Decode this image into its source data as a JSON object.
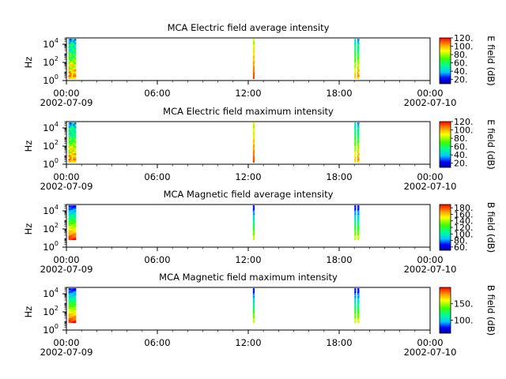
{
  "chart_data": [
    {
      "type": "heatmap",
      "title": "MCA  Electric field average intensity",
      "ylabel": "Hz",
      "colorbar_label": "E field (dB)",
      "colorbar_range": [
        10,
        120
      ],
      "colorbar_ticks": [
        "20.",
        "40.",
        "60.",
        "80.",
        "100.",
        "120."
      ],
      "colorbar_tick_values": [
        20,
        40,
        60,
        80,
        100,
        120
      ],
      "y_scale": "log",
      "y_ticks": [
        {
          "base": "10",
          "exp": "0"
        },
        {
          "base": "10",
          "exp": "2"
        },
        {
          "base": "10",
          "exp": "4"
        }
      ],
      "x_ticks": [
        "00:00",
        "06:00",
        "12:00",
        "18:00",
        "00:00"
      ],
      "x_dates": [
        "2002-07-09",
        "2002-07-10"
      ],
      "x_range": [
        "2002-07-09 00:00",
        "2002-07-10 00:00"
      ],
      "ylim_exp": [
        0,
        4.7
      ],
      "grid": false,
      "bursts": [
        {
          "start": "00:08",
          "end": "00:38",
          "style": "fringe"
        },
        {
          "start": "12:18",
          "end": "12:23",
          "style": "warm"
        },
        {
          "start": "19:00",
          "end": "19:03",
          "style": "sparse"
        },
        {
          "start": "19:12",
          "end": "19:19",
          "style": "fringe"
        }
      ]
    },
    {
      "type": "heatmap",
      "title": "MCA  Electric field maximum intensity",
      "ylabel": "Hz",
      "colorbar_label": "E field (dB)",
      "colorbar_range": [
        10,
        120
      ],
      "colorbar_ticks": [
        "20.",
        "40.",
        "60.",
        "80.",
        "100.",
        "120."
      ],
      "colorbar_tick_values": [
        20,
        40,
        60,
        80,
        100,
        120
      ],
      "y_scale": "log",
      "y_ticks": [
        {
          "base": "10",
          "exp": "0"
        },
        {
          "base": "10",
          "exp": "2"
        },
        {
          "base": "10",
          "exp": "4"
        }
      ],
      "x_ticks": [
        "00:00",
        "06:00",
        "12:00",
        "18:00",
        "00:00"
      ],
      "x_dates": [
        "2002-07-09",
        "2002-07-10"
      ],
      "x_range": [
        "2002-07-09 00:00",
        "2002-07-10 00:00"
      ],
      "ylim_exp": [
        0,
        4.7
      ],
      "grid": false,
      "bursts": [
        {
          "start": "00:08",
          "end": "00:38",
          "style": "fringe"
        },
        {
          "start": "12:18",
          "end": "12:23",
          "style": "warm"
        },
        {
          "start": "19:00",
          "end": "19:03",
          "style": "sparse"
        },
        {
          "start": "19:12",
          "end": "19:19",
          "style": "fringe"
        }
      ]
    },
    {
      "type": "heatmap",
      "title": "MCA  Magnetic field average intensity",
      "ylabel": "Hz",
      "colorbar_label": "B field (dB)",
      "colorbar_range": [
        50,
        190
      ],
      "colorbar_ticks": [
        "60.",
        "80.",
        "100.",
        "120.",
        "140.",
        "160.",
        "180."
      ],
      "colorbar_tick_values": [
        60,
        80,
        100,
        120,
        140,
        160,
        180
      ],
      "y_scale": "log",
      "y_ticks": [
        {
          "base": "10",
          "exp": "0"
        },
        {
          "base": "10",
          "exp": "2"
        },
        {
          "base": "10",
          "exp": "4"
        }
      ],
      "x_ticks": [
        "00:00",
        "06:00",
        "12:00",
        "18:00",
        "00:00"
      ],
      "x_dates": [
        "2002-07-09",
        "2002-07-10"
      ],
      "x_range": [
        "2002-07-09 00:00",
        "2002-07-10 00:00"
      ],
      "ylim_exp": [
        0,
        4.7
      ],
      "grid": false,
      "bursts": [
        {
          "start": "00:08",
          "end": "00:38",
          "style": "mag"
        },
        {
          "start": "12:18",
          "end": "12:23",
          "style": "mag-thin"
        },
        {
          "start": "19:00",
          "end": "19:03",
          "style": "mag-thin"
        },
        {
          "start": "19:12",
          "end": "19:19",
          "style": "mag-thin"
        }
      ]
    },
    {
      "type": "heatmap",
      "title": "MCA  Magnetic field maximum intensity",
      "ylabel": "Hz",
      "colorbar_label": "B field (dB)",
      "colorbar_range": [
        60,
        200
      ],
      "colorbar_ticks": [
        "100.",
        "150."
      ],
      "colorbar_tick_values": [
        100,
        150
      ],
      "y_scale": "log",
      "y_ticks": [
        {
          "base": "10",
          "exp": "0"
        },
        {
          "base": "10",
          "exp": "2"
        },
        {
          "base": "10",
          "exp": "4"
        }
      ],
      "x_ticks": [
        "00:00",
        "06:00",
        "12:00",
        "18:00",
        "00:00"
      ],
      "x_dates": [
        "2002-07-09",
        "2002-07-10"
      ],
      "x_range": [
        "2002-07-09 00:00",
        "2002-07-10 00:00"
      ],
      "ylim_exp": [
        0,
        4.7
      ],
      "grid": false,
      "bursts": [
        {
          "start": "00:08",
          "end": "00:38",
          "style": "mag"
        },
        {
          "start": "12:18",
          "end": "12:23",
          "style": "mag-thin"
        },
        {
          "start": "19:00",
          "end": "19:03",
          "style": "mag-thin"
        },
        {
          "start": "19:12",
          "end": "19:19",
          "style": "mag-thin"
        }
      ]
    }
  ]
}
